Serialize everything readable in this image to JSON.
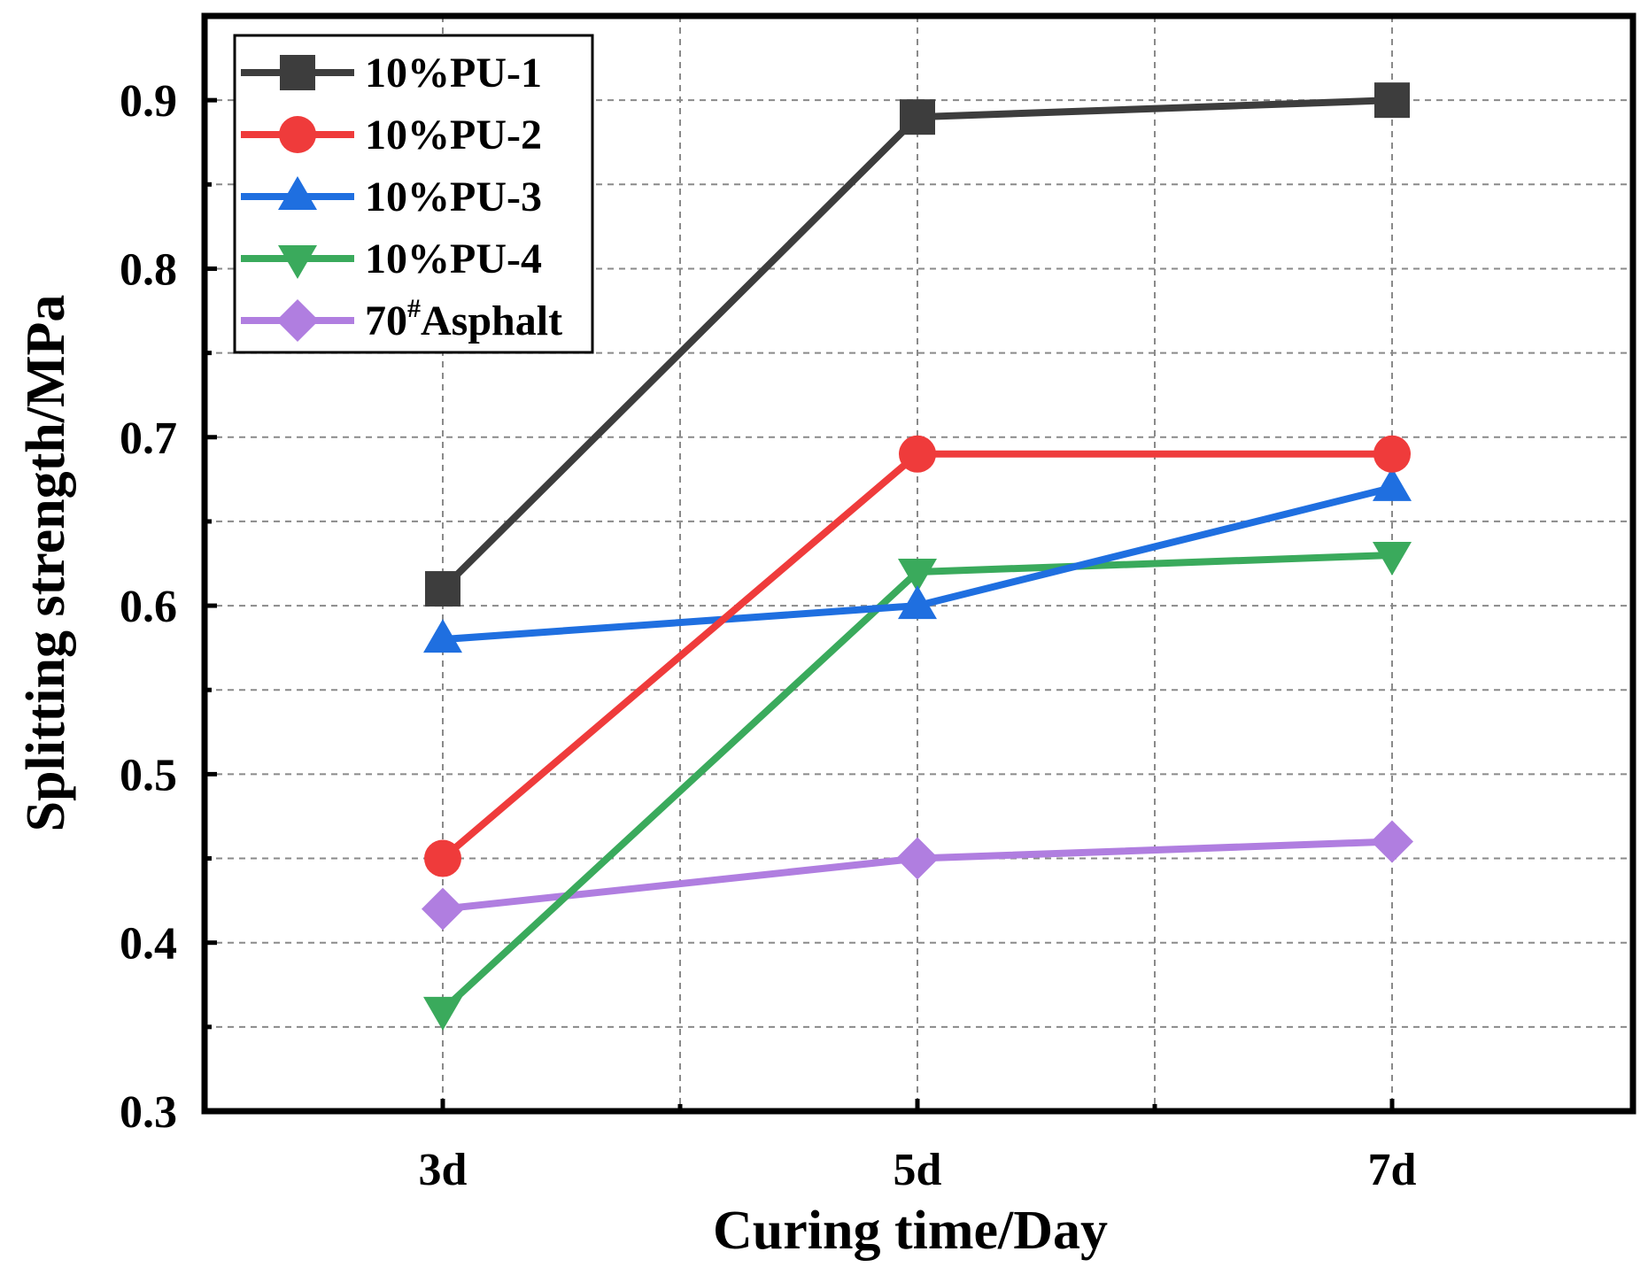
{
  "chart_data": {
    "type": "line",
    "title": "",
    "xlabel": "Curing time/Day",
    "ylabel": "Splitting strength/MPa",
    "categories": [
      "3d",
      "5d",
      "7d"
    ],
    "ylim": [
      0.3,
      0.95
    ],
    "yticks": [
      "0.3",
      "0.4",
      "0.5",
      "0.6",
      "0.7",
      "0.8",
      "0.9"
    ],
    "grid": true,
    "legend_position": "top-left",
    "series": [
      {
        "name": "10%PU-1",
        "color": "#3d3d3d",
        "marker": "square",
        "values": [
          0.61,
          0.89,
          0.9
        ]
      },
      {
        "name": "10%PU-2",
        "color": "#ef3b3b",
        "marker": "circle",
        "values": [
          0.45,
          0.69,
          0.69
        ]
      },
      {
        "name": "10%PU-3",
        "color": "#1f6fe0",
        "marker": "triangle-up",
        "values": [
          0.58,
          0.6,
          0.67
        ]
      },
      {
        "name": "10%PU-4",
        "color": "#3aaa5c",
        "marker": "triangle-down",
        "values": [
          0.36,
          0.62,
          0.63
        ]
      },
      {
        "name": "70",
        "name_superscript": "#",
        "name_suffix": "Asphalt",
        "color": "#b07ee0",
        "marker": "diamond",
        "values": [
          0.42,
          0.45,
          0.46
        ]
      }
    ]
  }
}
